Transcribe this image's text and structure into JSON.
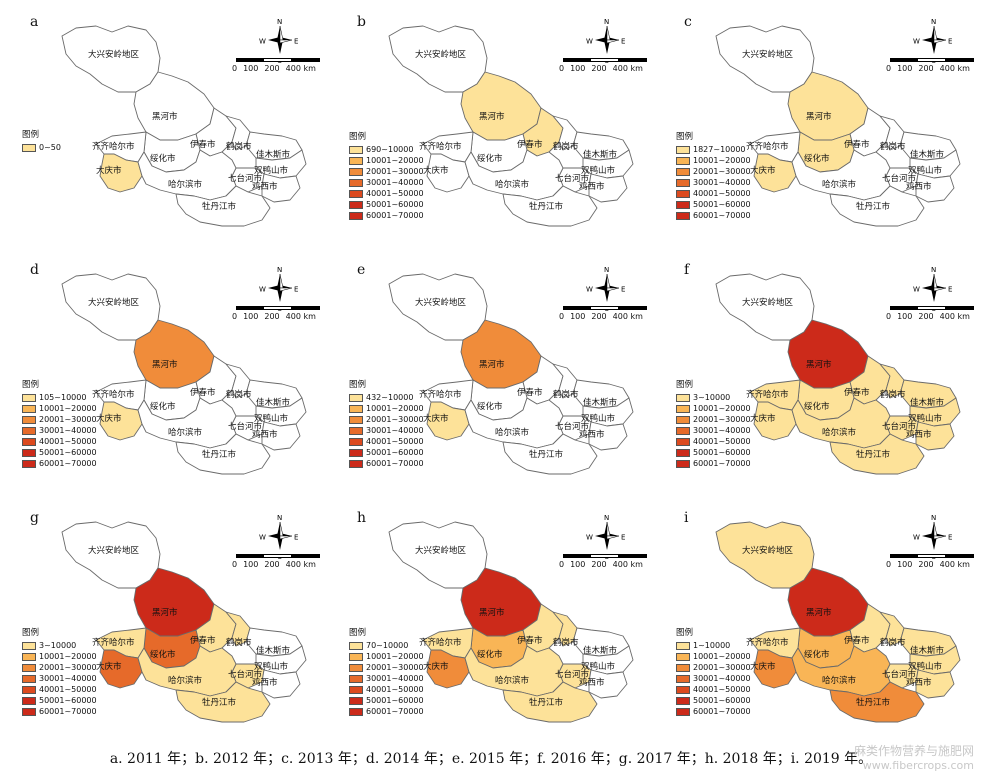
{
  "colors": {
    "c0": "#ffffff",
    "c1": "#fde299",
    "c2": "#f9b556",
    "c3": "#f08c3a",
    "c4": "#e66a2a",
    "c5": "#dc4a1f",
    "c6": "#cc2a1a",
    "border": "#6a6a6a"
  },
  "compass": {
    "n": "N",
    "s": "S",
    "e": "E",
    "w": "W"
  },
  "scale": {
    "labels": [
      "0",
      "100",
      "200",
      "400 km"
    ]
  },
  "legend_title": "图例",
  "cities": {
    "daxinganling": "大兴安岭地区",
    "heihe": "黑河市",
    "qiqihaer": "齐齐哈尔市",
    "suihua": "绥化市",
    "yichun": "伊春市",
    "hegang": "鹤岗市",
    "jiamusi": "佳木斯市",
    "shuangyashan": "双鸭山市",
    "qitaihe": "七台河市",
    "jixi": "鸡西市",
    "daqing": "大庆市",
    "haerbin": "哈尔滨市",
    "mudanjiang": "牡丹江市"
  },
  "panels": [
    {
      "letter": "a",
      "legend": [
        "0~50"
      ],
      "fills": {
        "daqing": "c1"
      }
    },
    {
      "letter": "b",
      "legend": [
        "690~10000",
        "10001~20000",
        "20001~30000",
        "30001~40000",
        "40001~50000",
        "50001~60000",
        "60001~70000"
      ],
      "fills": {
        "heihe": "c1",
        "yichun": "c1"
      }
    },
    {
      "letter": "c",
      "legend": [
        "1827~10000",
        "10001~20000",
        "20001~30000",
        "30001~40000",
        "40001~50000",
        "50001~60000",
        "60001~70000"
      ],
      "fills": {
        "heihe": "c1",
        "suihua": "c1",
        "daqing": "c1"
      }
    },
    {
      "letter": "d",
      "legend": [
        "105~10000",
        "10001~20000",
        "20001~30000",
        "30001~40000",
        "40001~50000",
        "50001~60000",
        "60001~70000"
      ],
      "fills": {
        "heihe": "c3",
        "daqing": "c1"
      }
    },
    {
      "letter": "e",
      "legend": [
        "432~10000",
        "10001~20000",
        "20001~30000",
        "30001~40000",
        "40001~50000",
        "50001~60000",
        "60001~70000"
      ],
      "fills": {
        "heihe": "c3",
        "daqing": "c1"
      }
    },
    {
      "letter": "f",
      "legend": [
        "3~10000",
        "10001~20000",
        "20001~30000",
        "30001~40000",
        "40001~50000",
        "50001~60000",
        "60001~70000"
      ],
      "fills": {
        "heihe": "c6",
        "qiqihaer": "c1",
        "suihua": "c1",
        "yichun": "c1",
        "hegang": "c1",
        "jiamusi": "c1",
        "shuangyashan": "c1",
        "qitaihe": "c1",
        "jixi": "c1",
        "daqing": "c1",
        "haerbin": "c1",
        "mudanjiang": "c1"
      }
    },
    {
      "letter": "g",
      "legend": [
        "3~10000",
        "10001~20000",
        "20001~30000",
        "30001~40000",
        "40001~50000",
        "50001~60000",
        "60001~70000"
      ],
      "fills": {
        "heihe": "c6",
        "qiqihaer": "c1",
        "suihua": "c4",
        "yichun": "c1",
        "hegang": "c1",
        "qitaihe": "c1",
        "daqing": "c4",
        "haerbin": "c1",
        "mudanjiang": "c1"
      }
    },
    {
      "letter": "h",
      "legend": [
        "70~10000",
        "10001~20000",
        "20001~30000",
        "30001~40000",
        "40001~50000",
        "50001~60000",
        "60001~70000"
      ],
      "fills": {
        "heihe": "c6",
        "qiqihaer": "c1",
        "suihua": "c2",
        "yichun": "c1",
        "hegang": "c1",
        "qitaihe": "c1",
        "daqing": "c3",
        "haerbin": "c1",
        "mudanjiang": "c1"
      }
    },
    {
      "letter": "i",
      "legend": [
        "1~10000",
        "10001~20000",
        "20001~30000",
        "30001~40000",
        "40001~50000",
        "50001~60000",
        "60001~70000"
      ],
      "fills": {
        "daxinganling": "c1",
        "heihe": "c6",
        "qiqihaer": "c1",
        "suihua": "c2",
        "yichun": "c1",
        "hegang": "c1",
        "jiamusi": "c1",
        "shuangyashan": "c1",
        "qitaihe": "c1",
        "jixi": "c1",
        "daqing": "c3",
        "haerbin": "c2",
        "mudanjiang": "c3"
      }
    }
  ],
  "legend_colors": [
    "c1",
    "c2",
    "c3",
    "c4",
    "c5",
    "c6",
    "c6"
  ],
  "caption": "a. 2011 年；b. 2012 年；c. 2013 年；d. 2014 年；e. 2015 年；f. 2016 年；g. 2017 年；h. 2018 年；i. 2019 年。",
  "watermark": {
    "line1": "麻类作物营养与施肥网",
    "line2": "www.fibercrops.com"
  }
}
